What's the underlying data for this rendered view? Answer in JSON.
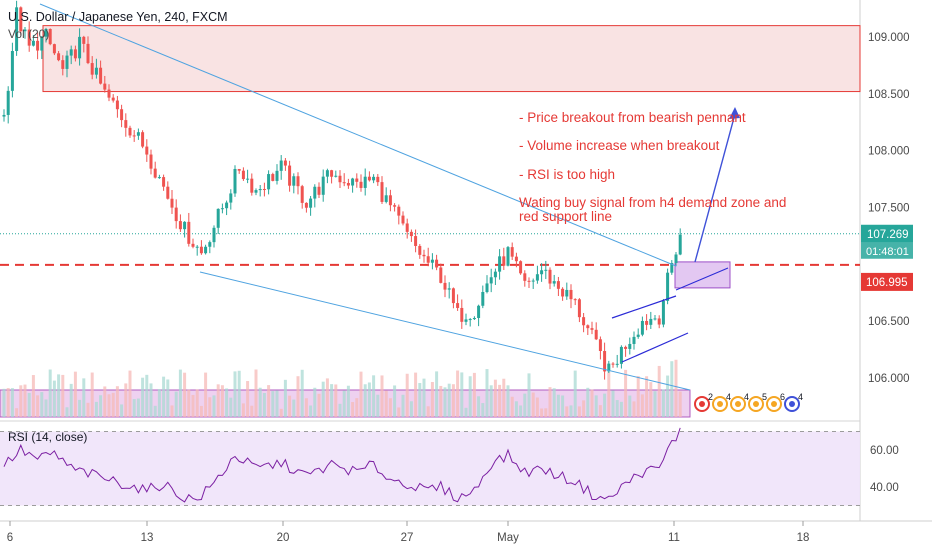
{
  "header": {
    "symbol": "U.S. Dollar / Japanese Yen, 240, FXCM",
    "volume_label": "Vol (20)"
  },
  "colors": {
    "up": "#26a69a",
    "down": "#ef5350",
    "resistance_zone": "#f7d9da",
    "resistance_line": "#e53935",
    "support_line": "#e53935",
    "channel": "#4fa3e0",
    "flag": "#2b2bd6",
    "projection_arrow": "#3f51d8",
    "demand_zone": "#e3c8f2",
    "rsi_line": "#7b1fa2",
    "rsi_band": "#efe3fa",
    "annotation_text": "#e53935",
    "current_price_bg": "#26a69a",
    "support_price_bg": "#e53935"
  },
  "annotations": [
    "- Price breakout from bearish pennant",
    "- Volume increase when  breakout",
    "- RSI is too high",
    "Wating buy signal from h4 demand zone and",
    "red support line"
  ],
  "price_labels": {
    "current_price": "107.269",
    "countdown": "01:48:01",
    "support_price": "106.995"
  },
  "event_markers": [
    "2",
    "4",
    "4",
    "5",
    "6",
    "4"
  ],
  "chart_data": [
    {
      "type": "candlestick",
      "title": "U.S. Dollar / Japanese Yen, 240, FXCM",
      "x_tick_labels": [
        "6",
        "13",
        "20",
        "27",
        "May",
        "11",
        "18"
      ],
      "y_tick_labels": [
        "109.000",
        "108.500",
        "108.000",
        "107.500",
        "107.000",
        "106.500",
        "106.000"
      ],
      "ylim": [
        105.75,
        109.35
      ],
      "grid": false,
      "resistance_zone": [
        108.52,
        109.1
      ],
      "support_line": 106.995,
      "last_price": 107.269,
      "close_path": [
        {
          "bar": 0,
          "close": 108.3
        },
        {
          "bar": 3,
          "close": 109.2
        },
        {
          "bar": 6,
          "close": 108.9
        },
        {
          "bar": 10,
          "close": 109.0
        },
        {
          "bar": 14,
          "close": 108.7
        },
        {
          "bar": 18,
          "close": 108.95
        },
        {
          "bar": 24,
          "close": 108.5
        },
        {
          "bar": 28,
          "close": 108.3
        },
        {
          "bar": 34,
          "close": 108.0
        },
        {
          "bar": 39,
          "close": 107.6
        },
        {
          "bar": 43,
          "close": 107.3
        },
        {
          "bar": 47,
          "close": 107.1
        },
        {
          "bar": 52,
          "close": 107.5
        },
        {
          "bar": 56,
          "close": 107.85
        },
        {
          "bar": 60,
          "close": 107.65
        },
        {
          "bar": 66,
          "close": 107.85
        },
        {
          "bar": 72,
          "close": 107.55
        },
        {
          "bar": 78,
          "close": 107.8
        },
        {
          "bar": 84,
          "close": 107.7
        },
        {
          "bar": 88,
          "close": 107.75
        },
        {
          "bar": 92,
          "close": 107.5
        },
        {
          "bar": 96,
          "close": 107.25
        },
        {
          "bar": 100,
          "close": 107.05
        },
        {
          "bar": 104,
          "close": 106.9
        },
        {
          "bar": 108,
          "close": 106.55
        },
        {
          "bar": 112,
          "close": 106.6
        },
        {
          "bar": 116,
          "close": 106.9
        },
        {
          "bar": 120,
          "close": 107.1
        },
        {
          "bar": 124,
          "close": 106.8
        },
        {
          "bar": 128,
          "close": 106.95
        },
        {
          "bar": 132,
          "close": 106.8
        },
        {
          "bar": 136,
          "close": 106.65
        },
        {
          "bar": 140,
          "close": 106.35
        },
        {
          "bar": 144,
          "close": 106.05
        },
        {
          "bar": 148,
          "close": 106.3
        },
        {
          "bar": 152,
          "close": 106.5
        },
        {
          "bar": 156,
          "close": 106.55
        },
        {
          "bar": 159,
          "close": 107.0
        },
        {
          "bar": 161,
          "close": 107.27
        }
      ]
    },
    {
      "type": "line",
      "title": "RSI (14, close)",
      "y_tick_labels": [
        "60.00",
        "40.00"
      ],
      "ylim": [
        22,
        76
      ],
      "bands": [
        30,
        70
      ],
      "values": [
        {
          "bar": 0,
          "value": 52
        },
        {
          "bar": 4,
          "value": 60
        },
        {
          "bar": 8,
          "value": 55
        },
        {
          "bar": 12,
          "value": 58
        },
        {
          "bar": 16,
          "value": 50
        },
        {
          "bar": 22,
          "value": 46
        },
        {
          "bar": 28,
          "value": 42
        },
        {
          "bar": 34,
          "value": 38
        },
        {
          "bar": 38,
          "value": 42
        },
        {
          "bar": 42,
          "value": 35
        },
        {
          "bar": 46,
          "value": 33
        },
        {
          "bar": 50,
          "value": 42
        },
        {
          "bar": 55,
          "value": 57
        },
        {
          "bar": 60,
          "value": 50
        },
        {
          "bar": 66,
          "value": 53
        },
        {
          "bar": 72,
          "value": 46
        },
        {
          "bar": 78,
          "value": 52
        },
        {
          "bar": 84,
          "value": 48
        },
        {
          "bar": 88,
          "value": 52
        },
        {
          "bar": 92,
          "value": 44
        },
        {
          "bar": 96,
          "value": 42
        },
        {
          "bar": 100,
          "value": 38
        },
        {
          "bar": 104,
          "value": 40
        },
        {
          "bar": 108,
          "value": 34
        },
        {
          "bar": 112,
          "value": 38
        },
        {
          "bar": 116,
          "value": 53
        },
        {
          "bar": 120,
          "value": 57
        },
        {
          "bar": 124,
          "value": 48
        },
        {
          "bar": 128,
          "value": 50
        },
        {
          "bar": 132,
          "value": 46
        },
        {
          "bar": 136,
          "value": 43
        },
        {
          "bar": 140,
          "value": 36
        },
        {
          "bar": 144,
          "value": 33
        },
        {
          "bar": 148,
          "value": 42
        },
        {
          "bar": 152,
          "value": 48
        },
        {
          "bar": 156,
          "value": 50
        },
        {
          "bar": 159,
          "value": 64
        },
        {
          "bar": 161,
          "value": 70
        }
      ]
    }
  ]
}
